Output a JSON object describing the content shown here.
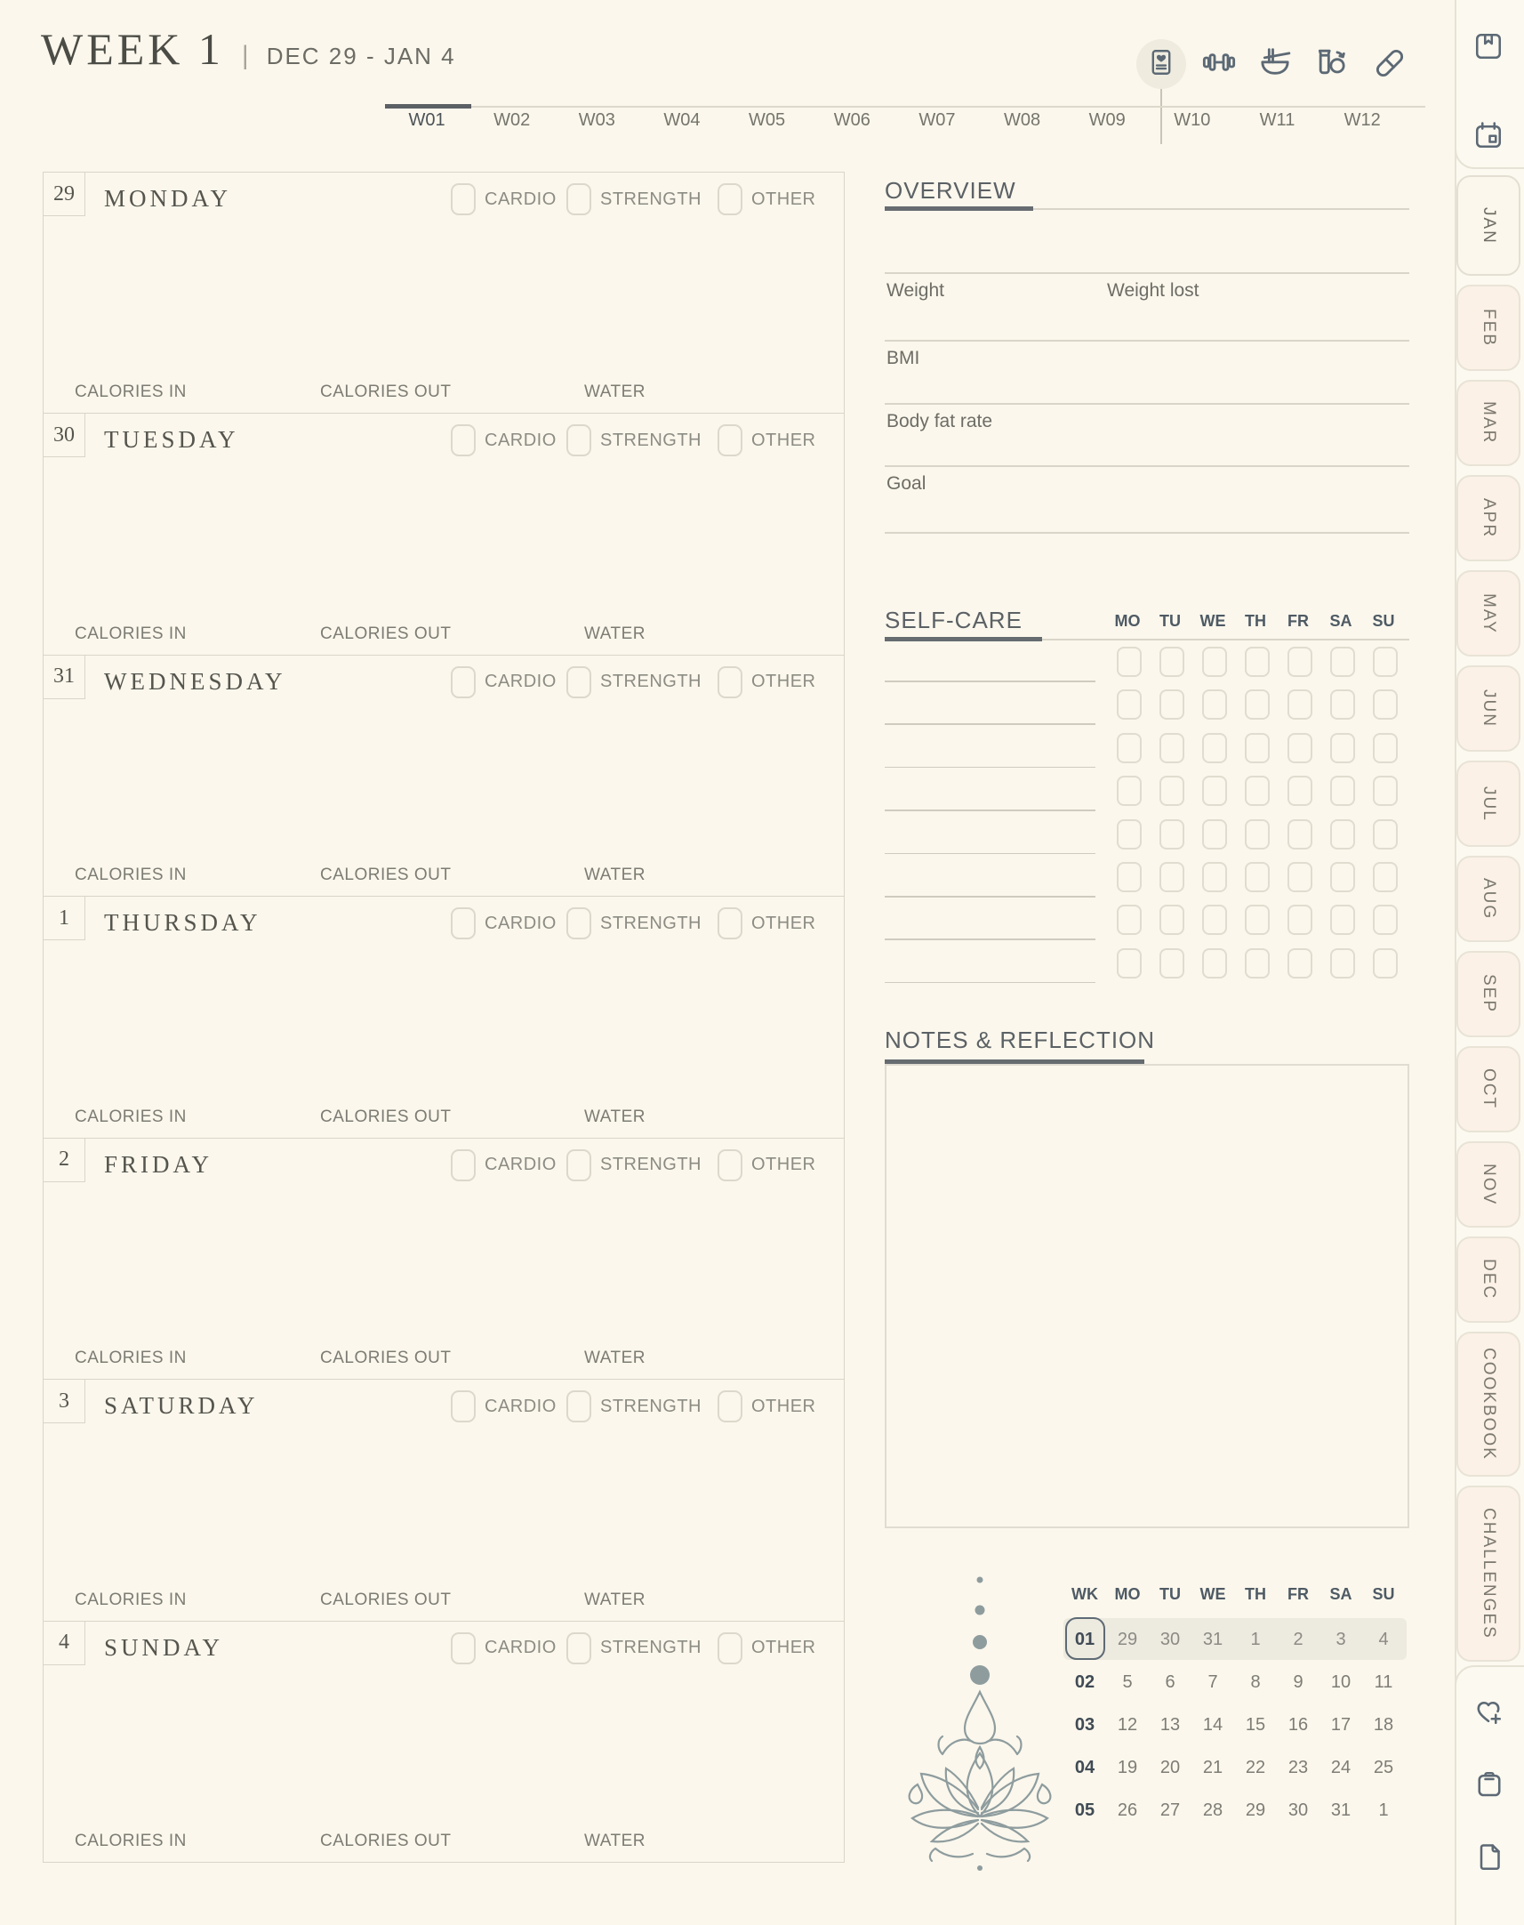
{
  "colors": {
    "page_bg": "#fbf7ec",
    "panel_bg": "#fcf9f0",
    "tab_inactive_bg": "#fcf1e6",
    "line_light": "#d9d5c8",
    "line_dark": "#666c70",
    "icon_slate": "#5c6975",
    "highlight_band": "#edeae0",
    "lotus_stroke": "#8e9c9e"
  },
  "header": {
    "title": "WEEK 1",
    "separator": "|",
    "date_range": "DEC 29 - JAN 4",
    "icons": [
      "health-journal-icon",
      "dumbbell-icon",
      "meal-bowl-icon",
      "shaker-bottle-icon",
      "pill-icon"
    ],
    "active_icon": "health-journal-icon"
  },
  "week_tabs": {
    "active": "W01",
    "items": [
      "W01",
      "W02",
      "W03",
      "W04",
      "W05",
      "W06",
      "W07",
      "W08",
      "W09",
      "W10",
      "W11",
      "W12"
    ]
  },
  "days": {
    "checkbox_labels": [
      "CARDIO",
      "STRENGTH",
      "OTHER"
    ],
    "footer_labels": [
      "CALORIES IN",
      "CALORIES OUT",
      "WATER"
    ],
    "items": [
      {
        "date": "29",
        "name": "MONDAY"
      },
      {
        "date": "30",
        "name": "TUESDAY"
      },
      {
        "date": "31",
        "name": "WEDNESDAY"
      },
      {
        "date": "1",
        "name": "THURSDAY"
      },
      {
        "date": "2",
        "name": "FRIDAY"
      },
      {
        "date": "3",
        "name": "SATURDAY"
      },
      {
        "date": "4",
        "name": "SUNDAY"
      }
    ]
  },
  "overview": {
    "title": "OVERVIEW",
    "rows": [
      [
        "Weight",
        "Weight lost"
      ],
      [
        "BMI"
      ],
      [
        "Body fat rate"
      ],
      [
        "Goal"
      ]
    ]
  },
  "self_care": {
    "title": "SELF-CARE",
    "day_headers": [
      "MO",
      "TU",
      "WE",
      "TH",
      "FR",
      "SA",
      "SU"
    ],
    "row_count": 8
  },
  "notes": {
    "title": "NOTES & REFLECTION"
  },
  "mini_calendar": {
    "headers": [
      "WK",
      "MO",
      "TU",
      "WE",
      "TH",
      "FR",
      "SA",
      "SU"
    ],
    "current_week": "01",
    "rows": [
      {
        "wk": "01",
        "dates": [
          "29",
          "30",
          "31",
          "1",
          "2",
          "3",
          "4"
        ],
        "current": true
      },
      {
        "wk": "02",
        "dates": [
          "5",
          "6",
          "7",
          "8",
          "9",
          "10",
          "11"
        ],
        "current": false
      },
      {
        "wk": "03",
        "dates": [
          "12",
          "13",
          "14",
          "15",
          "16",
          "17",
          "18"
        ],
        "current": false
      },
      {
        "wk": "04",
        "dates": [
          "19",
          "20",
          "21",
          "22",
          "23",
          "24",
          "25"
        ],
        "current": false
      },
      {
        "wk": "05",
        "dates": [
          "26",
          "27",
          "28",
          "29",
          "30",
          "31",
          "1"
        ],
        "current": false
      }
    ]
  },
  "sidebar": {
    "top_icons": [
      "bookmark-icon",
      "calendar-icon"
    ],
    "month_tabs": [
      "JAN",
      "FEB",
      "MAR",
      "APR",
      "MAY",
      "JUN",
      "JUL",
      "AUG",
      "SEP",
      "OCT",
      "NOV",
      "DEC"
    ],
    "extra_tabs": [
      "COOKBOOK",
      "CHALLENGES"
    ],
    "active_tab": "JAN",
    "bottom_icons": [
      "heart-plus-icon",
      "clipboard-icon",
      "document-icon"
    ]
  }
}
